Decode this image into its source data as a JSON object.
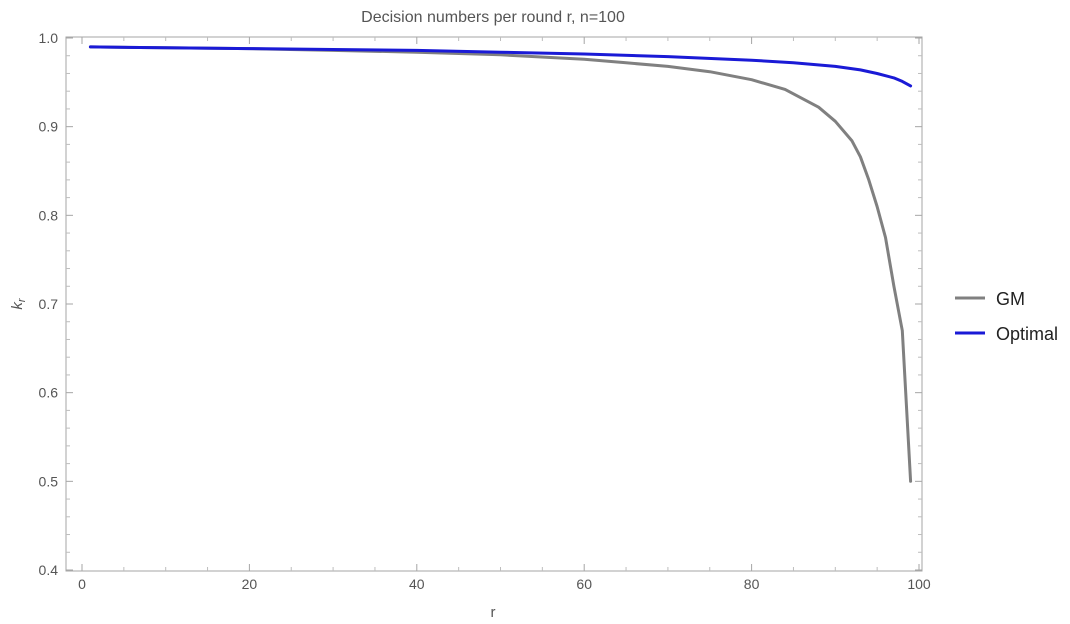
{
  "chart_data": {
    "type": "line",
    "title": "Decision numbers per round r, n=100",
    "xlabel": "r",
    "ylabel_main": "k",
    "ylabel_sub": "r",
    "xlim": [
      0,
      100
    ],
    "ylim": [
      0.4,
      1.0
    ],
    "x_ticks": [
      0,
      20,
      40,
      60,
      80,
      100
    ],
    "y_ticks": [
      0.4,
      0.5,
      0.6,
      0.7,
      0.8,
      0.9,
      1.0
    ],
    "y_tick_labels": [
      "0.4",
      "0.5",
      "0.6",
      "0.7",
      "0.8",
      "0.9",
      "1.0"
    ],
    "legend_position": "right",
    "series": [
      {
        "name": "GM",
        "color": "#808080",
        "x": [
          1,
          10,
          20,
          30,
          40,
          50,
          60,
          65,
          70,
          75,
          80,
          84,
          88,
          90,
          92,
          93,
          94,
          95,
          96,
          97,
          98,
          99
        ],
        "y": [
          0.99,
          0.989,
          0.988,
          0.986,
          0.984,
          0.981,
          0.976,
          0.972,
          0.968,
          0.962,
          0.953,
          0.942,
          0.922,
          0.906,
          0.884,
          0.866,
          0.84,
          0.81,
          0.775,
          0.72,
          0.67,
          0.5
        ]
      },
      {
        "name": "Optimal",
        "color": "#1a1ad6",
        "x": [
          1,
          10,
          20,
          30,
          40,
          50,
          60,
          70,
          80,
          85,
          90,
          93,
          95,
          97,
          98,
          99
        ],
        "y": [
          0.99,
          0.989,
          0.988,
          0.987,
          0.986,
          0.984,
          0.982,
          0.979,
          0.975,
          0.972,
          0.968,
          0.964,
          0.96,
          0.955,
          0.951,
          0.946
        ]
      }
    ]
  }
}
